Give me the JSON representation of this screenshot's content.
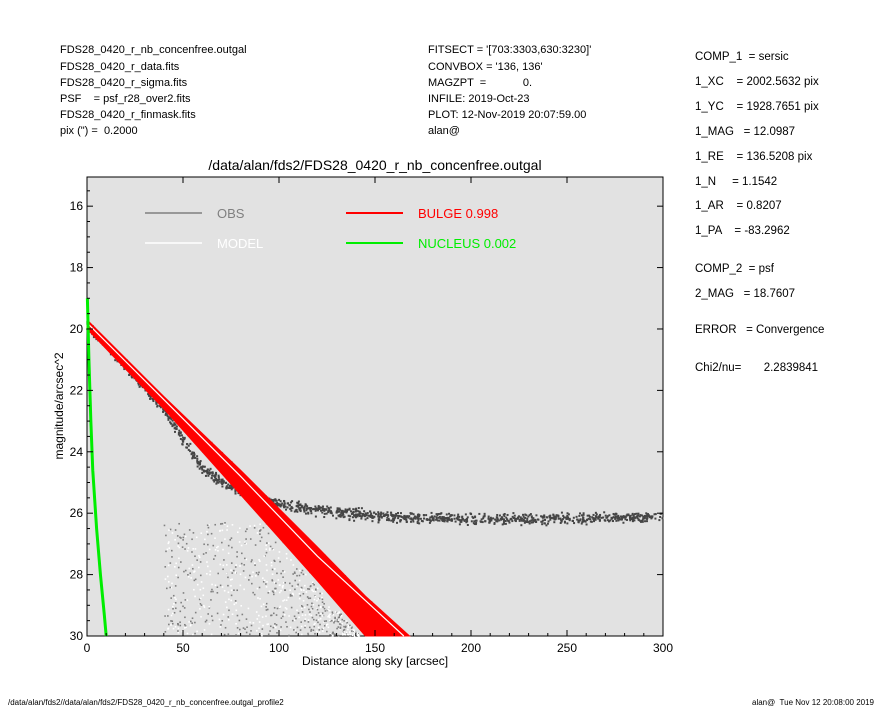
{
  "header": {
    "left_lines": [
      "FDS28_0420_r_nb_concenfree.outgal",
      "FDS28_0420_r_data.fits",
      "FDS28_0420_r_sigma.fits",
      "PSF    = psf_r28_over2.fits",
      "FDS28_0420_r_finmask.fits",
      "pix (\") =  0.2000"
    ],
    "mid_lines": [
      "FITSECT = '[703:3303,630:3230]'",
      "CONVBOX = '136, 136'",
      "MAGZPT  =            0.",
      "INFILE: 2019-Oct-23",
      "PLOT: 12-Nov-2019 20:07:59.00",
      "alan@"
    ]
  },
  "sidebar": {
    "comp1_lines": [
      "COMP_1  = sersic",
      "1_XC    = 2002.5632 pix",
      "1_YC    = 1928.7651 pix",
      "1_MAG   = 12.0987",
      "1_RE    = 136.5208 pix",
      "1_N     = 1.1542",
      "1_AR    = 0.8207",
      "1_PA    = -83.2962"
    ],
    "comp2_lines": [
      "COMP_2  = psf",
      "2_MAG   = 18.7607"
    ],
    "error_line": "ERROR   = Convergence",
    "chi2_line": "Chi2/nu=       2.2839841"
  },
  "footer": {
    "left": "/data/alan/fds2//data/alan/fds2/FDS28_0420_r_nb_concenfree.outgal_profile2",
    "right": "alan@  Tue Nov 12 20:08:00 2019"
  },
  "colors": {
    "plot_bg": "#e2e2e2",
    "obs": "#808080",
    "obs_dark": "#454545",
    "model": "#ffffff",
    "bulge": "#ff0000",
    "nucleus": "#00ee00"
  },
  "chart_data": {
    "type": "scatter",
    "title": "/data/alan/fds2/FDS28_0420_r_nb_concenfree.outgal",
    "xlabel": "Distance along sky [arcsec]",
    "ylabel": "magnitude/arcsec^2",
    "xlim": [
      0,
      300
    ],
    "ylim": [
      30,
      15
    ],
    "y_inverted": true,
    "x_ticks": [
      0,
      50,
      100,
      150,
      200,
      250,
      300
    ],
    "y_ticks": [
      16,
      18,
      20,
      22,
      24,
      26,
      28,
      30
    ],
    "grid": false,
    "legend": [
      {
        "label": "OBS",
        "color": "#808080"
      },
      {
        "label": "MODEL",
        "color": "#ffffff"
      },
      {
        "label": "BULGE  0.998",
        "color": "#ff0000"
      },
      {
        "label": "NUCLEUS  0.002",
        "color": "#00ee00"
      }
    ],
    "series": [
      {
        "name": "OBS",
        "kind": "scatter",
        "x": [
          0,
          10,
          20,
          30,
          40,
          50,
          60,
          70,
          80,
          100,
          120,
          150,
          200,
          250,
          300
        ],
        "y": [
          19.9,
          20.5,
          21.2,
          21.9,
          22.6,
          23.6,
          24.5,
          25.0,
          25.3,
          25.7,
          25.9,
          26.1,
          26.2,
          26.2,
          26.1
        ]
      },
      {
        "name": "MODEL",
        "kind": "line",
        "x": [
          0,
          40,
          80,
          120,
          165
        ],
        "y": [
          19.8,
          22.3,
          24.8,
          27.4,
          30.0
        ]
      },
      {
        "name": "BULGE  0.998",
        "kind": "band",
        "x": [
          0,
          40,
          80,
          120,
          145,
          168
        ],
        "y_low": [
          19.7,
          22.2,
          24.6,
          27.1,
          28.7,
          30.0
        ],
        "y_high": [
          20.0,
          22.6,
          25.4,
          28.2,
          30.0,
          30.0
        ]
      },
      {
        "name": "NUCLEUS  0.002",
        "kind": "line",
        "x": [
          0.2,
          1,
          2,
          3,
          5,
          7,
          9,
          10
        ],
        "y": [
          19.0,
          21.0,
          23.0,
          24.6,
          26.5,
          28.0,
          29.3,
          30.0
        ]
      }
    ]
  }
}
